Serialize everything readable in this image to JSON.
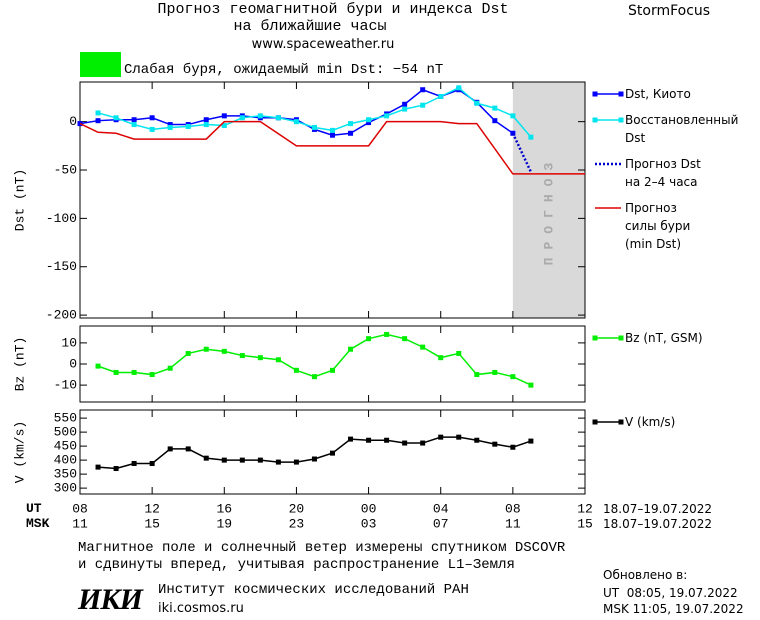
{
  "header": {
    "title_line1": "Прогноз геомагнитной бури и индекса Dst",
    "title_line2": "на ближайшие часы",
    "url": "www.spaceweather.ru",
    "brand": "StormFocus"
  },
  "status": {
    "text": "Слабая буря, ожидаемый min Dst: −54 nT",
    "color": "#00ee00"
  },
  "x_axis": {
    "xlim": [
      0,
      28
    ],
    "ut_label": "UT",
    "msk_label": "MSK",
    "ut_ticks": [
      {
        "value": 0,
        "label": "08"
      },
      {
        "value": 4,
        "label": "12"
      },
      {
        "value": 8,
        "label": "16"
      },
      {
        "value": 12,
        "label": "20"
      },
      {
        "value": 16,
        "label": "00"
      },
      {
        "value": 20,
        "label": "04"
      },
      {
        "value": 24,
        "label": "08"
      },
      {
        "value": 28,
        "label": "12"
      }
    ],
    "msk_ticks": [
      {
        "value": 0,
        "label": "11"
      },
      {
        "value": 4,
        "label": "15"
      },
      {
        "value": 8,
        "label": "19"
      },
      {
        "value": 12,
        "label": "23"
      },
      {
        "value": 16,
        "label": "03"
      },
      {
        "value": 20,
        "label": "07"
      },
      {
        "value": 24,
        "label": "11"
      },
      {
        "value": 28,
        "label": "15"
      }
    ],
    "ut_dates": "18.07–19.07.2022",
    "msk_dates": "18.07–19.07.2022"
  },
  "forecast_zone": {
    "x_range": [
      24,
      28
    ],
    "label": "ПРОГНОЗ",
    "color": "#d9d9d9"
  },
  "chart_data": [
    {
      "type": "line",
      "ylabel": "Dst (nT)",
      "ylim": [
        -203,
        41
      ],
      "yticks": [
        0,
        -50,
        -100,
        -150,
        -200
      ],
      "series": [
        {
          "name": "Dst, Киото",
          "color": "#0000ff",
          "marker": "square",
          "x": [
            0,
            1,
            2,
            3,
            4,
            5,
            6,
            7,
            8,
            9,
            10,
            11,
            12,
            13,
            14,
            15,
            16,
            17,
            18,
            19,
            20,
            21,
            22,
            23,
            24
          ],
          "values": [
            -2,
            1,
            2,
            2,
            4,
            -3,
            -3,
            2,
            6,
            6,
            4,
            4,
            2,
            -8,
            -14,
            -12,
            -1,
            8,
            18,
            33,
            26,
            33,
            20,
            1,
            -12
          ]
        },
        {
          "name": "Восстановленный\nDst",
          "color": "#00e5ee",
          "marker": "square",
          "x": [
            1,
            2,
            3,
            4,
            5,
            6,
            7,
            8,
            9,
            10,
            11,
            12,
            13,
            14,
            15,
            16,
            17,
            18,
            19,
            20,
            21,
            22,
            23,
            24,
            25
          ],
          "values": [
            9,
            4,
            -3,
            -8,
            -6,
            -5,
            -3,
            -4,
            4,
            6,
            4,
            0,
            -6,
            -9,
            -2,
            2,
            6,
            13,
            17,
            26,
            35,
            19,
            14,
            6,
            -16
          ]
        },
        {
          "name": "Прогноз Dst\nна 2–4 часа",
          "color": "#0000cc",
          "style": "dotted",
          "x": [
            24,
            25
          ],
          "values": [
            -12,
            -52
          ]
        },
        {
          "name": "Прогноз\nсилы бури\n(min Dst)",
          "color": "#dd0000",
          "x": [
            0,
            1,
            2,
            3,
            7,
            8,
            10,
            12,
            16,
            17,
            20,
            21,
            22,
            24,
            28
          ],
          "values": [
            -2,
            -11,
            -12,
            -18,
            -18,
            0,
            0,
            -25,
            -25,
            0,
            0,
            -2,
            -2,
            -54,
            -54
          ]
        }
      ]
    },
    {
      "type": "line",
      "ylabel": "Bz (nT)",
      "ylim": [
        -18,
        18
      ],
      "yticks": [
        10,
        0,
        -10
      ],
      "series": [
        {
          "name": "Bz (nT, GSM)",
          "color": "#00ee00",
          "marker": "square",
          "x": [
            1,
            2,
            3,
            4,
            5,
            6,
            7,
            8,
            9,
            10,
            11,
            12,
            13,
            14,
            15,
            16,
            17,
            18,
            19,
            20,
            21,
            22,
            23,
            24,
            25
          ],
          "values": [
            -1,
            -4,
            -4,
            -5,
            -2,
            5,
            7,
            6,
            4,
            3,
            2,
            -3,
            -6,
            -3,
            7,
            12,
            14,
            12,
            8,
            3,
            5,
            -5,
            -4,
            -6,
            -10
          ]
        }
      ]
    },
    {
      "type": "line",
      "ylabel": "V (km/s)",
      "ylim": [
        279,
        579
      ],
      "yticks": [
        550,
        500,
        450,
        400,
        350,
        300
      ],
      "series": [
        {
          "name": "V (km/s)",
          "color": "#000000",
          "marker": "square",
          "x": [
            1,
            2,
            3,
            4,
            5,
            6,
            7,
            8,
            9,
            10,
            11,
            12,
            13,
            14,
            15,
            16,
            17,
            18,
            19,
            20,
            21,
            22,
            23,
            24,
            25
          ],
          "values": [
            375,
            370,
            388,
            388,
            440,
            440,
            407,
            400,
            400,
            400,
            393,
            393,
            404,
            425,
            475,
            471,
            471,
            461,
            461,
            482,
            482,
            471,
            457,
            446,
            468
          ]
        }
      ]
    }
  ],
  "footer": {
    "note_line1": "Магнитное поле и солнечный ветер измерены спутником DSCOVR",
    "note_line2": "и сдвинуты вперед, учитывая распространение L1–Земля",
    "logo": "ИКИ",
    "institute": "Институт космических исследований РАН",
    "site": "iki.cosmos.ru",
    "updated_label": "Обновлено в:",
    "updated_ut": "UT  08:05, 19.07.2022",
    "updated_msk": "MSK 11:05, 19.07.2022"
  }
}
